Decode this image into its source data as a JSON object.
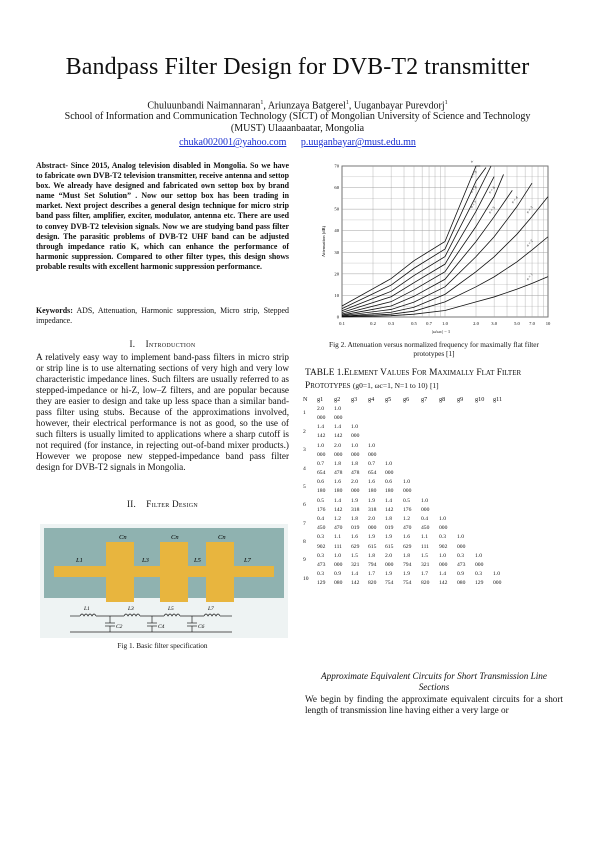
{
  "paper": {
    "title": "Bandpass Filter Design for DVB-T2 transmitter",
    "authors": [
      "Chuluunbandi Naimannaran",
      "Ariunzaya Batgerel",
      "Uuganbayar Purevdorj"
    ],
    "affiliation_mark": "1",
    "affiliation_line1": "School of Information and Communication Technology (SICT) of Mongolian University of Science and Technology",
    "affiliation_line2": "(MUST)  Ulaaanbaatar, Mongolia",
    "email1": "chuka002001@yahoo.com",
    "email2": "p.uuganbayar@must.edu.mn"
  },
  "abstract": "Abstract- Since 2015, Analog television disabled in Mongolia. So we have to fabricate own DVB-T2 television transmitter, receive antenna and settop box. We already have designed and fabricated own settop box by brand name “Must Set Solution” . Now our settop box has been  trading in market. Next project describes a general design technique for micro strip band pass filter, amplifier, exciter, modulator, antenna etc. There are used to convey DVB-T2 television signals. Now we are studying band pass filter design. The parasitic problems of DVB-T2 UHF band can be adjusted through impedance ratio K, which can enhance the performance of harmonic suppression. Compared to other filter types,  this design shows probable results  with excellent harmonic suppression performance.",
  "keywords": {
    "label": "Keywords:",
    "text": "ADS, Attenuation, Harmonic suppression, Micro strip, Stepped impedance."
  },
  "sections": {
    "intro_num": "I.",
    "intro_title": "Introduction",
    "intro_text": "A relatively easy way to implement band-pass filters in micro strip or strip line is to use alternating sections of very high and very low characteristic impedance lines. Such filters are usually referred to as stepped-impedance or hi-Z, low–Z filters, and are popular because they are easier to design and take up less space than a similar band-pass filter using stubs. Because of the approximations involved, however, their electrical performance is not as good, so the use of such filters is usually limited to applications where a sharp cutoff is not required (for instance, in rejecting out-of-band mixer products.) However we propose new stepped-impedance band pass filter design for DVB-T2 signals in Mongolia.",
    "design_num": "II.",
    "design_title": "Filter Design",
    "subhead": "Approximate Equivalent Circuits for Short Transmission Line Sections",
    "approx_text": "We begin by finding the approximate equivalent circuits for a short length of transmission line having either a very large or"
  },
  "fig1": {
    "caption": "Fig 1. Basic filter specification",
    "top_labels": [
      "Cn",
      "Cn",
      "Cn"
    ],
    "line_labels": [
      "L1",
      "L3",
      "L5",
      "L7"
    ],
    "circuit_L_labels": [
      "L1",
      "L3",
      "L5",
      "L7"
    ],
    "circuit_C_labels": [
      "C2",
      "C4",
      "C6"
    ],
    "colors": {
      "strip": "#e8b53e",
      "board": "#8fb2b0"
    }
  },
  "fig2": {
    "caption_line1": "Fig 2. Attenuation versus normalized frequency for maximally flat filter",
    "caption_line2": "prototypes [1]"
  },
  "chart_data": {
    "type": "line",
    "title": "",
    "xlabel": "|ω/ωc| − 1",
    "ylabel": "Attenuation (dB)",
    "xscale": "log",
    "xlim": [
      0.1,
      10.0
    ],
    "ylim": [
      0,
      70
    ],
    "grid": true,
    "xticks": [
      "0.1",
      "0.2",
      "0.3",
      "0.5",
      "0.7",
      "1.0",
      "2.0",
      "3.0",
      "5.0",
      "7.0",
      "10"
    ],
    "yticks": [
      "0",
      "10",
      "20",
      "30",
      "40",
      "50",
      "60",
      "70"
    ],
    "series": [
      {
        "name": "n = 1",
        "x": [
          0.1,
          0.3,
          0.5,
          1,
          2,
          3,
          5,
          7,
          10
        ],
        "y": [
          0.04,
          0.6,
          1.3,
          3,
          7,
          9.3,
          12.9,
          15.6,
          18.7
        ]
      },
      {
        "name": "n = 2",
        "x": [
          0.1,
          0.3,
          0.5,
          1,
          2,
          3,
          5,
          7,
          10
        ],
        "y": [
          0.2,
          1.3,
          2.7,
          7,
          14,
          18.6,
          25.6,
          31.1,
          37.2
        ]
      },
      {
        "name": "n = 3",
        "x": [
          0.1,
          0.3,
          0.5,
          1,
          2,
          3,
          5,
          7,
          10
        ],
        "y": [
          0.3,
          2.2,
          4.5,
          10.5,
          21,
          27.9,
          38.4,
          46.6,
          55.8
        ]
      },
      {
        "name": "n = 4",
        "x": [
          0.1,
          0.3,
          0.5,
          1,
          2,
          3,
          5,
          7
        ],
        "y": [
          0.6,
          3.5,
          6.9,
          14,
          28,
          37.2,
          51.2,
          62.1
        ]
      },
      {
        "name": "n = 5",
        "x": [
          0.1,
          0.3,
          0.5,
          1,
          2,
          3,
          4.5
        ],
        "y": [
          0.9,
          5.1,
          9.6,
          17.5,
          35,
          46.5,
          58.7
        ]
      },
      {
        "name": "n = 6",
        "x": [
          0.1,
          0.3,
          0.5,
          1,
          2,
          3,
          3.7
        ],
        "y": [
          1.4,
          7.1,
          12.6,
          21,
          42,
          55.8,
          66.1
        ]
      },
      {
        "name": "n = 7",
        "x": [
          0.1,
          0.3,
          0.5,
          1,
          2,
          3
        ],
        "y": [
          2.1,
          9.4,
          15.9,
          24.5,
          49,
          65.1
        ]
      },
      {
        "name": "n = 8",
        "x": [
          0.1,
          0.3,
          0.5,
          1,
          2,
          2.8
        ],
        "y": [
          2.9,
          11.9,
          19.2,
          28,
          56,
          70
        ]
      },
      {
        "name": "n = 9",
        "x": [
          0.1,
          0.3,
          0.5,
          1,
          2,
          2.5
        ],
        "y": [
          3.9,
          14.8,
          22.6,
          31.5,
          63,
          69.3
        ]
      },
      {
        "name": "n = 10",
        "x": [
          0.1,
          0.3,
          0.5,
          1,
          2,
          2.2
        ],
        "y": [
          5.1,
          17.8,
          26.1,
          35,
          70,
          70
        ]
      }
    ]
  },
  "table": {
    "title_prefix": "TABLE 1.",
    "title_caps": "Element Values For Maximally Flat Filter Prototypes",
    "title_params": "(g0=1, ωc=1, N=1 to 10)",
    "title_ref": "[1]",
    "headers": [
      "N",
      "g1",
      "g2",
      "g3",
      "g4",
      "g5",
      "g6",
      "g7",
      "g8",
      "g9",
      "g10",
      "g11"
    ],
    "rows": [
      {
        "n": "1",
        "a": [
          "2.0",
          "1.0"
        ],
        "b": [
          "000",
          "000"
        ]
      },
      {
        "n": "2",
        "a": [
          "1.4",
          "1.4",
          "1.0"
        ],
        "b": [
          "142",
          "142",
          "000"
        ]
      },
      {
        "n": "3",
        "a": [
          "1.0",
          "2.0",
          "1.0",
          "1.0"
        ],
        "b": [
          "000",
          "000",
          "000",
          "000"
        ]
      },
      {
        "n": "4",
        "a": [
          "0.7",
          "1.8",
          "1.8",
          "0.7",
          "1.0"
        ],
        "b": [
          "654",
          "478",
          "478",
          "654",
          "000"
        ]
      },
      {
        "n": "5",
        "a": [
          "0.6",
          "1.6",
          "2.0",
          "1.6",
          "0.6",
          "1.0"
        ],
        "b": [
          "180",
          "180",
          "000",
          "180",
          "180",
          "000"
        ]
      },
      {
        "n": "6",
        "a": [
          "0.5",
          "1.4",
          "1.9",
          "1.9",
          "1.4",
          "0.5",
          "1.0"
        ],
        "b": [
          "176",
          "142",
          "318",
          "318",
          "142",
          "176",
          "000"
        ]
      },
      {
        "n": "7",
        "a": [
          "0.4",
          "1.2",
          "1.8",
          "2.0",
          "1.8",
          "1.2",
          "0.4",
          "1.0"
        ],
        "b": [
          "450",
          "470",
          "019",
          "000",
          "019",
          "470",
          "450",
          "000"
        ]
      },
      {
        "n": "8",
        "a": [
          "0.3",
          "1.1",
          "1.6",
          "1.9",
          "1.9",
          "1.6",
          "1.1",
          "0.3",
          "1.0"
        ],
        "b": [
          "902",
          "111",
          "629",
          "615",
          "615",
          "629",
          "111",
          "902",
          "000"
        ]
      },
      {
        "n": "9",
        "a": [
          "0.3",
          "1.0",
          "1.5",
          "1.8",
          "2.0",
          "1.8",
          "1.5",
          "1.0",
          "0.3",
          "1.0"
        ],
        "b": [
          "473",
          "000",
          "321",
          "794",
          "000",
          "794",
          "321",
          "000",
          "473",
          "000"
        ]
      },
      {
        "n": "10",
        "a": [
          "0.3",
          "0.9",
          "1.4",
          "1.7",
          "1.9",
          "1.9",
          "1.7",
          "1.4",
          "0.9",
          "0.3",
          "1.0"
        ],
        "b": [
          "129",
          "080",
          "142",
          "820",
          "754",
          "754",
          "820",
          "142",
          "080",
          "129",
          "000"
        ]
      }
    ]
  }
}
